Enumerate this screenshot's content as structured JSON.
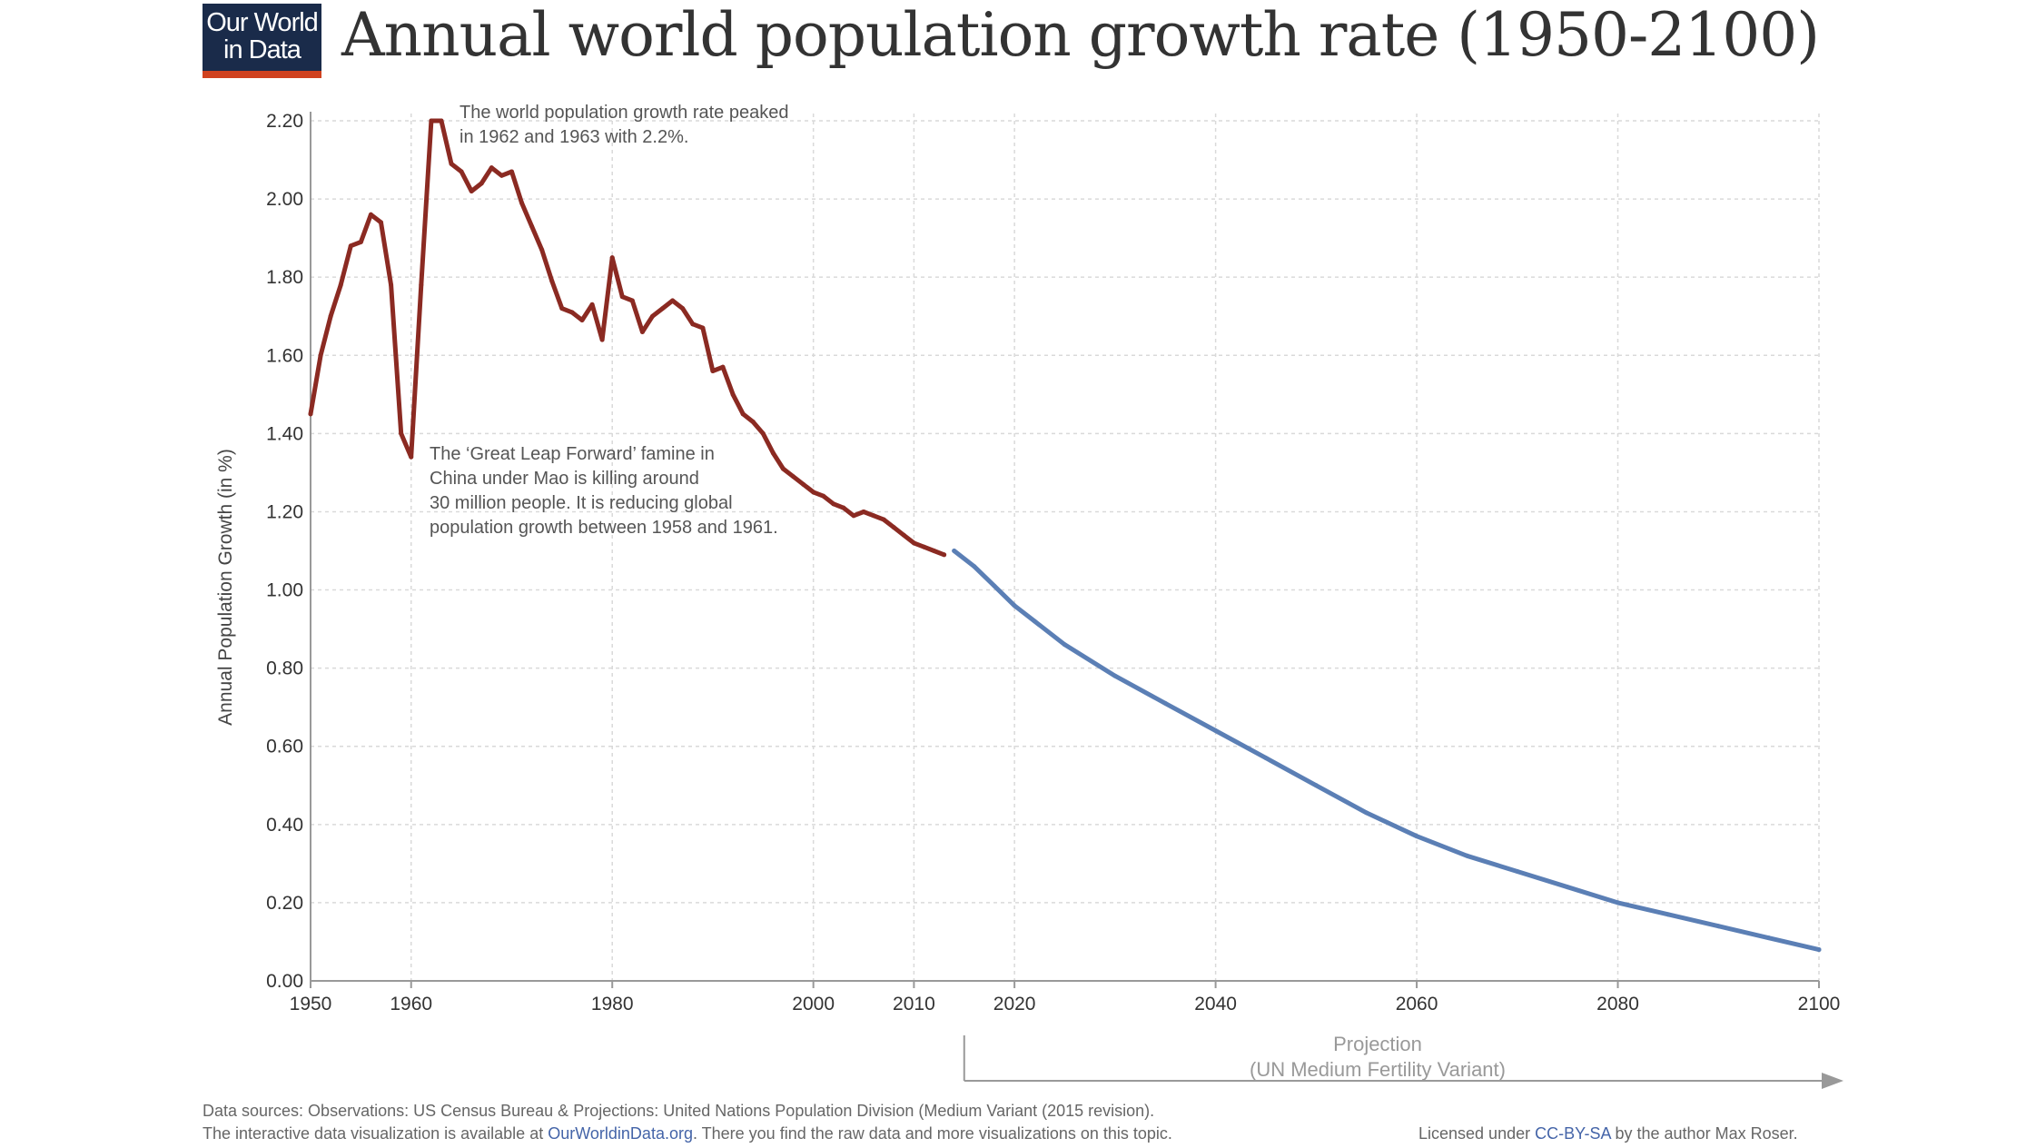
{
  "header": {
    "logo_line1": "Our World",
    "logo_line2": "in Data",
    "title": "Annual world population growth rate (1950-2100)"
  },
  "footer": {
    "sources": "Data sources: Observations: US Census Bureau & Projections: United Nations Population Division (Medium Variant (2015 revision).",
    "interactive_prefix": "The interactive data visualization is available at",
    "interactive_link": "OurWorldinData.org",
    "interactive_suffix": ". There you find the raw data and more visualizations on this topic.",
    "license_prefix": "Licensed under",
    "license_link": "CC-BY-SA",
    "license_suffix": "by the author Max Roser."
  },
  "colors": {
    "observed": "#8b2a22",
    "projection": "#5b7fb5",
    "grid": "#d9d9d9",
    "axis": "#999999",
    "logo_bg": "#1a2b4a",
    "logo_accent": "#d0421f",
    "link": "#4464a8"
  },
  "chart_data": {
    "type": "line",
    "title": "Annual world population growth rate (1950-2100)",
    "xlabel": "",
    "ylabel": "Annual Population Growth (in %)",
    "xlim": [
      1950,
      2100
    ],
    "ylim": [
      0,
      2.2
    ],
    "x_ticks": [
      1950,
      1960,
      1980,
      2000,
      2010,
      2020,
      2040,
      2060,
      2080,
      2100
    ],
    "y_ticks": [
      "0.00",
      "0.20",
      "0.40",
      "0.60",
      "0.80",
      "1.00",
      "1.20",
      "1.40",
      "1.60",
      "1.80",
      "2.00",
      "2.20"
    ],
    "grid": true,
    "series": [
      {
        "name": "Observations",
        "x": [
          1950,
          1951,
          1952,
          1953,
          1954,
          1955,
          1956,
          1957,
          1958,
          1959,
          1960,
          1961,
          1962,
          1963,
          1964,
          1965,
          1966,
          1967,
          1968,
          1969,
          1970,
          1971,
          1972,
          1973,
          1974,
          1975,
          1976,
          1977,
          1978,
          1979,
          1980,
          1981,
          1982,
          1983,
          1984,
          1985,
          1986,
          1987,
          1988,
          1989,
          1990,
          1991,
          1992,
          1993,
          1994,
          1995,
          1996,
          1997,
          1998,
          1999,
          2000,
          2001,
          2002,
          2003,
          2004,
          2005,
          2006,
          2007,
          2008,
          2009,
          2010,
          2011,
          2012,
          2013
        ],
        "y": [
          1.45,
          1.6,
          1.7,
          1.78,
          1.88,
          1.89,
          1.96,
          1.94,
          1.78,
          1.4,
          1.34,
          1.78,
          2.2,
          2.2,
          2.09,
          2.07,
          2.02,
          2.04,
          2.08,
          2.06,
          2.07,
          1.99,
          1.93,
          1.87,
          1.79,
          1.72,
          1.71,
          1.69,
          1.73,
          1.64,
          1.85,
          1.75,
          1.74,
          1.66,
          1.7,
          1.72,
          1.74,
          1.72,
          1.68,
          1.67,
          1.56,
          1.57,
          1.5,
          1.45,
          1.43,
          1.4,
          1.35,
          1.31,
          1.29,
          1.27,
          1.25,
          1.24,
          1.22,
          1.21,
          1.19,
          1.2,
          1.19,
          1.18,
          1.16,
          1.14,
          1.12,
          1.11,
          1.1,
          1.09
        ]
      },
      {
        "name": "Projection",
        "x": [
          2014,
          2016,
          2018,
          2020,
          2022,
          2025,
          2030,
          2035,
          2040,
          2045,
          2050,
          2055,
          2060,
          2065,
          2070,
          2075,
          2080,
          2085,
          2090,
          2095,
          2100
        ],
        "y": [
          1.1,
          1.06,
          1.01,
          0.96,
          0.92,
          0.86,
          0.78,
          0.71,
          0.64,
          0.57,
          0.5,
          0.43,
          0.37,
          0.32,
          0.28,
          0.24,
          0.2,
          0.17,
          0.14,
          0.11,
          0.08
        ]
      }
    ],
    "annotations": [
      {
        "text_lines": [
          "The world population growth rate peaked",
          "in 1962 and 1963 with 2.2%."
        ]
      },
      {
        "text_lines": [
          "The ‘Great Leap Forward’ famine in",
          "China under Mao is killing around",
          "30 million people. It is reducing global",
          "population growth between 1958 and 1961."
        ]
      }
    ],
    "projection_note": [
      "Projection",
      "(UN Medium Fertility Variant)"
    ]
  }
}
